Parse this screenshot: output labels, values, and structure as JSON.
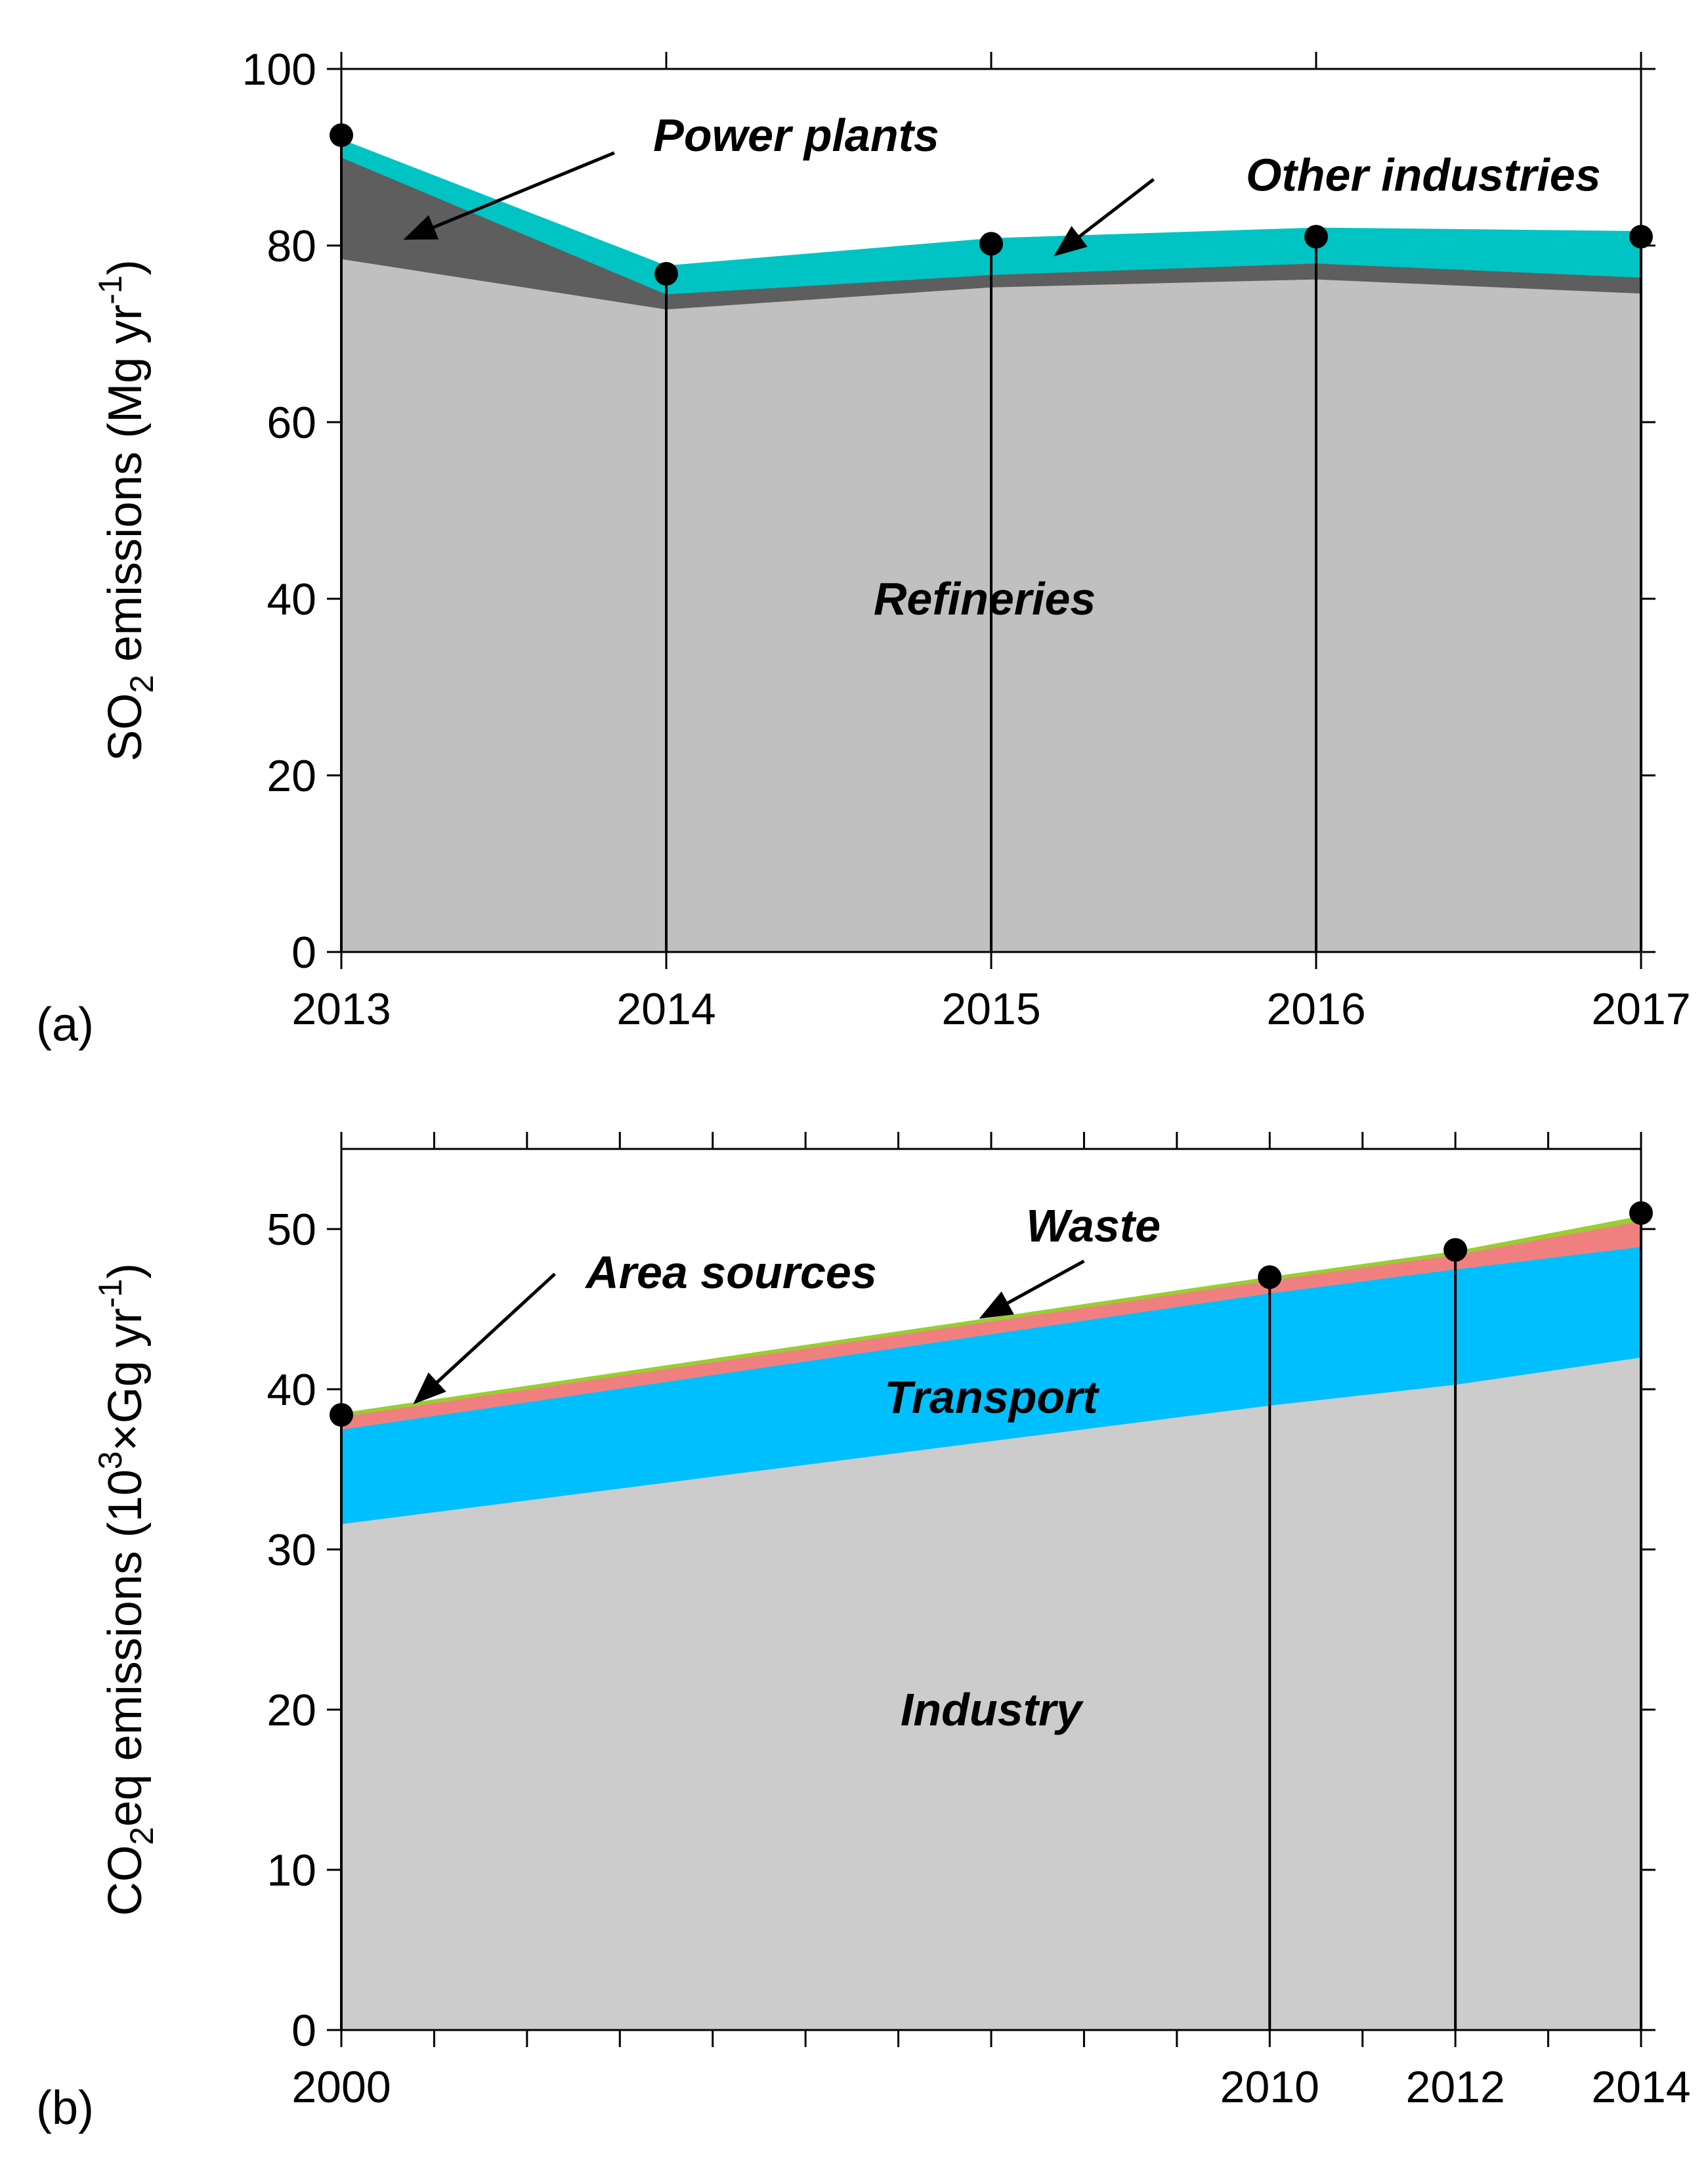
{
  "chart_data": [
    {
      "type": "area",
      "panel_label": "(a)",
      "ylabel_prefix": "SO",
      "ylabel_sub": "2",
      "ylabel_main": " emissions (Mg yr",
      "ylabel_sup": "-1",
      "ylabel_close": ")",
      "xlim": [
        2013,
        2017
      ],
      "ylim": [
        0,
        100
      ],
      "x_ticks": [
        2013,
        2014,
        2015,
        2016,
        2017
      ],
      "x_tick_labels": [
        "2013",
        "2014",
        "2015",
        "2016",
        "2017"
      ],
      "x_minor_ticks": [],
      "y_ticks": [
        0,
        20,
        40,
        60,
        80,
        100
      ],
      "y_tick_labels": [
        "0",
        "20",
        "40",
        "60",
        "80",
        "100"
      ],
      "x": [
        2013,
        2014,
        2015,
        2016,
        2017
      ],
      "series": [
        {
          "name": "Refineries",
          "values": [
            78.5,
            72.8,
            75.3,
            76.2,
            74.6
          ],
          "color": "#c0c0c0"
        },
        {
          "name": "Power plants",
          "values": [
            11.5,
            1.7,
            1.4,
            1.8,
            1.8
          ],
          "color": "#5e5e5e"
        },
        {
          "name": "Other industries",
          "values": [
            2.0,
            3.2,
            4.1,
            4.0,
            5.2
          ],
          "color": "#00c4c4"
        }
      ],
      "observed": {
        "x": [
          2013,
          2014,
          2015,
          2016,
          2017
        ],
        "values": [
          92.5,
          76.8,
          80.2,
          81.0,
          81.0
        ]
      },
      "labels": [
        {
          "text": "Refineries",
          "x": 2014.98,
          "y": 40
        },
        {
          "text": "Power plants",
          "x": 2014.4,
          "y": 92.5
        },
        {
          "text": "Other industries",
          "x": 2016.33,
          "y": 88
        }
      ],
      "arrows": [
        {
          "from": [
            2013.84,
            90.5
          ],
          "to": [
            2013.2,
            80.8
          ]
        },
        {
          "from": [
            2015.5,
            87.5
          ],
          "to": [
            2015.2,
            79.0
          ]
        }
      ]
    },
    {
      "type": "area",
      "panel_label": "(b)",
      "ylabel_prefix": "CO",
      "ylabel_sub": "2",
      "ylabel_main": "eq emissions (10",
      "ylabel_sup": "3",
      "ylabel_main2": "×Gg yr",
      "ylabel_sup2": "-1",
      "ylabel_close": ")",
      "xlim": [
        2000,
        2014
      ],
      "ylim": [
        0,
        55
      ],
      "x_ticks": [
        2000,
        2010,
        2012,
        2014
      ],
      "x_tick_labels": [
        "2000",
        "2010",
        "2012",
        "2014"
      ],
      "x_minor_ticks": [
        2001,
        2002,
        2003,
        2004,
        2005,
        2006,
        2007,
        2008,
        2009,
        2011,
        2013
      ],
      "y_ticks": [
        0,
        10,
        20,
        30,
        40,
        50
      ],
      "y_tick_labels": [
        "0",
        "10",
        "20",
        "30",
        "40",
        "50"
      ],
      "x": [
        2000,
        2010,
        2012,
        2014
      ],
      "series": [
        {
          "name": "Industry",
          "values": [
            31.6,
            39.0,
            40.3,
            42.0
          ],
          "color": "#cccccc"
        },
        {
          "name": "Transport",
          "values": [
            5.9,
            7.0,
            7.2,
            6.9
          ],
          "color": "#00bfff"
        },
        {
          "name": "Area sources",
          "values": [
            0.8,
            0.8,
            0.9,
            1.6
          ],
          "color": "#f08080"
        },
        {
          "name": "Waste",
          "values": [
            0.2,
            0.2,
            0.2,
            0.3
          ],
          "color": "#9acd32"
        }
      ],
      "observed": {
        "x": [
          2000,
          2010,
          2012,
          2014
        ],
        "values": [
          38.4,
          47.0,
          48.7,
          51.0
        ]
      },
      "labels": [
        {
          "text": "Transport",
          "x": 2007.0,
          "y": 39.5
        },
        {
          "text": "Industry",
          "x": 2007.0,
          "y": 20.0
        },
        {
          "text": "Area sources",
          "x": 2004.2,
          "y": 47.3
        },
        {
          "text": "Waste",
          "x": 2008.1,
          "y": 50.2
        }
      ],
      "arrows": [
        {
          "from": [
            2002.3,
            47.2
          ],
          "to": [
            2000.8,
            39.2
          ]
        },
        {
          "from": [
            2008.0,
            48.0
          ],
          "to": [
            2006.9,
            44.5
          ]
        }
      ]
    }
  ]
}
